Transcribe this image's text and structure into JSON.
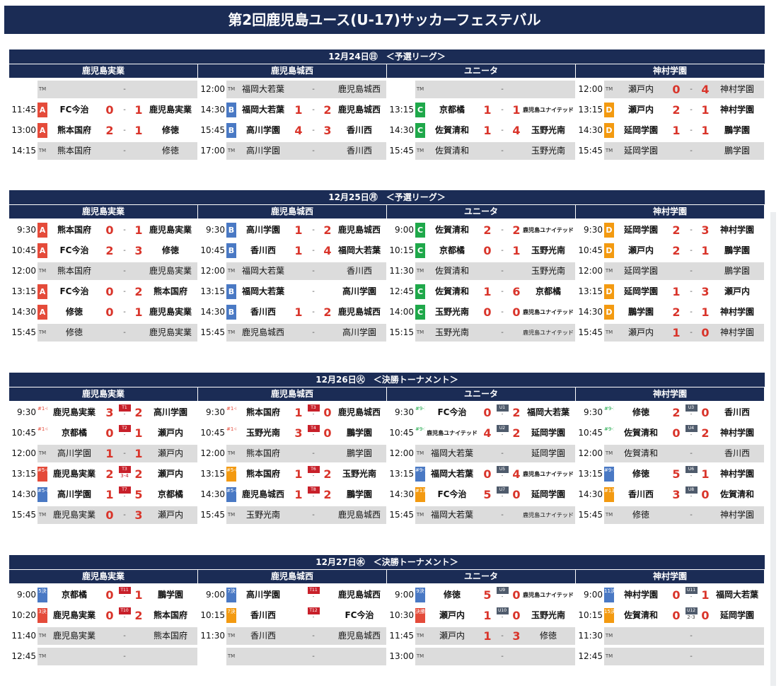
{
  "title": "第2回鹿児島ユース(U-17)サッカーフェステバル",
  "venues": [
    "鹿児島実業",
    "鹿児島城西",
    "ユニータ",
    "神村学園"
  ],
  "days": [
    {
      "label": "12月24日㊐　＜予選リーグ＞",
      "cols": [
        [
          {
            "t": "",
            "g": "TM",
            "h": "",
            "a": "",
            "dash": true,
            "sh": true
          },
          {
            "t": "11:45",
            "g": "A",
            "h": "FC今治",
            "s1": "0",
            "s2": "1",
            "a": "鹿児島実業"
          },
          {
            "t": "13:00",
            "g": "A",
            "h": "熊本国府",
            "s1": "2",
            "s2": "1",
            "a": "修徳"
          },
          {
            "t": "14:15",
            "g": "TM",
            "h": "熊本国府",
            "a": "修徳",
            "dash": true,
            "sh": true
          }
        ],
        [
          {
            "t": "12:00",
            "g": "TM",
            "h": "福岡大若葉",
            "a": "鹿児島城西",
            "dash": true,
            "sh": true
          },
          {
            "t": "14:30",
            "g": "B",
            "h": "福岡大若葉",
            "s1": "1",
            "s2": "2",
            "a": "鹿児島城西"
          },
          {
            "t": "15:45",
            "g": "B",
            "h": "高川学園",
            "s1": "4",
            "s2": "3",
            "a": "香川西"
          },
          {
            "t": "17:00",
            "g": "TM",
            "h": "高川学園",
            "a": "香川西",
            "dash": true,
            "sh": true
          }
        ],
        [
          {
            "t": "",
            "g": "TM",
            "h": "",
            "a": "",
            "dash": true,
            "sh": true
          },
          {
            "t": "13:15",
            "g": "C",
            "h": "京都橘",
            "s1": "1",
            "s2": "1",
            "a": "鹿児島ユナイテッド",
            "as": 1
          },
          {
            "t": "14:30",
            "g": "C",
            "h": "佐賀清和",
            "s1": "1",
            "s2": "4",
            "a": "玉野光南"
          },
          {
            "t": "15:45",
            "g": "TM",
            "h": "佐賀清和",
            "a": "玉野光南",
            "dash": true,
            "sh": true
          }
        ],
        [
          {
            "t": "12:00",
            "g": "TM",
            "h": "瀬戸内",
            "s1": "0",
            "s2": "4",
            "a": "神村学園",
            "sh": true
          },
          {
            "t": "13:15",
            "g": "D",
            "h": "瀬戸内",
            "s1": "2",
            "s2": "1",
            "a": "神村学園"
          },
          {
            "t": "14:30",
            "g": "D",
            "h": "延岡学園",
            "s1": "1",
            "s2": "1",
            "a": "鵬学園"
          },
          {
            "t": "15:45",
            "g": "TM",
            "h": "延岡学園",
            "a": "鵬学園",
            "dash": true,
            "sh": true
          }
        ]
      ]
    },
    {
      "label": "12月25日㊊　＜予選リーグ＞",
      "cols": [
        [
          {
            "t": "9:30",
            "g": "A",
            "h": "熊本国府",
            "s1": "0",
            "s2": "1",
            "a": "鹿児島実業"
          },
          {
            "t": "10:45",
            "g": "A",
            "h": "FC今治",
            "s1": "2",
            "s2": "3",
            "a": "修徳"
          },
          {
            "t": "12:00",
            "g": "TM",
            "h": "熊本国府",
            "a": "鹿児島実業",
            "dash": true,
            "sh": true
          },
          {
            "t": "13:15",
            "g": "A",
            "h": "FC今治",
            "s1": "0",
            "s2": "2",
            "a": "熊本国府"
          },
          {
            "t": "14:30",
            "g": "A",
            "h": "修徳",
            "s1": "0",
            "s2": "1",
            "a": "鹿児島実業"
          },
          {
            "t": "15:45",
            "g": "TM",
            "h": "修徳",
            "a": "鹿児島実業",
            "dash": true,
            "sh": true
          }
        ],
        [
          {
            "t": "9:30",
            "g": "B",
            "h": "高川学園",
            "s1": "1",
            "s2": "2",
            "a": "鹿児島城西"
          },
          {
            "t": "10:45",
            "g": "B",
            "h": "香川西",
            "s1": "1",
            "s2": "4",
            "a": "福岡大若葉"
          },
          {
            "t": "12:00",
            "g": "TM",
            "h": "福岡大若葉",
            "a": "香川西",
            "dash": true,
            "sh": true
          },
          {
            "t": "13:15",
            "g": "B",
            "h": "福岡大若葉",
            "a": "高川学園",
            "dash": true
          },
          {
            "t": "14:30",
            "g": "B",
            "h": "香川西",
            "s1": "1",
            "s2": "2",
            "a": "鹿児島城西"
          },
          {
            "t": "15:45",
            "g": "TM",
            "h": "鹿児島城西",
            "a": "高川学園",
            "dash": true,
            "sh": true
          }
        ],
        [
          {
            "t": "9:00",
            "g": "C",
            "h": "佐賀清和",
            "s1": "2",
            "s2": "2",
            "a": "鹿児島ユナイテッド",
            "as": 1
          },
          {
            "t": "10:15",
            "g": "C",
            "h": "京都橘",
            "s1": "0",
            "s2": "1",
            "a": "玉野光南"
          },
          {
            "t": "11:30",
            "g": "TM",
            "h": "佐賀清和",
            "a": "玉野光南",
            "dash": true,
            "sh": true
          },
          {
            "t": "12:45",
            "g": "C",
            "h": "佐賀清和",
            "s1": "1",
            "s2": "6",
            "a": "京都橘"
          },
          {
            "t": "14:00",
            "g": "C",
            "h": "玉野光南",
            "s1": "0",
            "s2": "0",
            "a": "鹿児島ユナイテッド",
            "as": 1
          },
          {
            "t": "15:15",
            "g": "TM",
            "h": "玉野光南",
            "a": "鹿児島ユナイテッド",
            "as": 1,
            "dash": true,
            "sh": true
          }
        ],
        [
          {
            "t": "9:30",
            "g": "D",
            "h": "延岡学園",
            "s1": "2",
            "s2": "3",
            "a": "神村学園"
          },
          {
            "t": "10:45",
            "g": "D",
            "h": "瀬戸内",
            "s1": "2",
            "s2": "1",
            "a": "鵬学園"
          },
          {
            "t": "12:00",
            "g": "TM",
            "h": "延岡学園",
            "a": "鵬学園",
            "dash": true,
            "sh": true
          },
          {
            "t": "13:15",
            "g": "D",
            "h": "延岡学園",
            "s1": "1",
            "s2": "3",
            "a": "瀬戸内"
          },
          {
            "t": "14:30",
            "g": "D",
            "h": "鵬学園",
            "s1": "2",
            "s2": "1",
            "a": "神村学園"
          },
          {
            "t": "15:45",
            "g": "TM",
            "h": "瀬戸内",
            "s1": "1",
            "s2": "0",
            "a": "神村学園",
            "sh": true
          }
        ]
      ]
    },
    {
      "label": "12月26日㊋　＜決勝トーナメント＞",
      "cols": [
        [
          {
            "t": "9:30",
            "g": "rkA",
            "gl": "#1-8",
            "h": "鹿児島実業",
            "s1": "3",
            "s2": "2",
            "a": "高川学園",
            "mc": "T1",
            "mcl": "tr",
            "pk": "-"
          },
          {
            "t": "10:45",
            "g": "rkA",
            "gl": "#1-8",
            "h": "京都橘",
            "s1": "0",
            "s2": "1",
            "a": "瀬戸内",
            "mc": "T2",
            "mcl": "tr",
            "pk": "-"
          },
          {
            "t": "12:00",
            "g": "TM",
            "h": "高川学園",
            "s1": "1",
            "s2": "1",
            "a": "瀬戸内",
            "sh": true
          },
          {
            "t": "13:15",
            "g": "rkAf",
            "gl": "#5-8",
            "h": "鹿児島実業",
            "s1": "2",
            "s2": "2",
            "a": "瀬戸内",
            "mc": "T3",
            "mcl": "tr",
            "pk": "3-4",
            "pkc": 1
          },
          {
            "t": "14:30",
            "g": "rkCf",
            "gl": "#5-8",
            "h": "高川学園",
            "s1": "1",
            "s2": "5",
            "a": "京都橘",
            "mc": "T7",
            "mcl": "tr",
            "pk": "-"
          },
          {
            "t": "15:45",
            "g": "TM",
            "h": "鹿児島実業",
            "s1": "0",
            "s2": "3",
            "a": "瀬戸内",
            "sh": true
          }
        ],
        [
          {
            "t": "9:30",
            "g": "rkA",
            "gl": "#1-8",
            "h": "熊本国府",
            "s1": "1",
            "s2": "0",
            "a": "鹿児島城西",
            "mc": "T3",
            "mcl": "tr",
            "pk": "-"
          },
          {
            "t": "10:45",
            "g": "rkA",
            "gl": "#1-8",
            "h": "玉野光南",
            "s1": "3",
            "s2": "0",
            "a": "鵬学園",
            "mc": "T4",
            "mcl": "tr",
            "pk": "-"
          },
          {
            "t": "12:00",
            "g": "TM",
            "h": "熊本国府",
            "a": "鵬学園",
            "dash": true,
            "sh": true
          },
          {
            "t": "13:15",
            "g": "rkBf",
            "gl": "#5-8",
            "h": "熊本国府",
            "s1": "1",
            "s2": "2",
            "a": "玉野光南",
            "mc": "T6",
            "mcl": "tr",
            "pk": "-"
          },
          {
            "t": "14:30",
            "g": "rkCf",
            "gl": "#5-8",
            "h": "鹿児島城西",
            "s1": "1",
            "s2": "2",
            "a": "鵬学園",
            "mc": "T8",
            "mcl": "tr",
            "pk": "-"
          },
          {
            "t": "15:45",
            "g": "TM",
            "h": "玉野光南",
            "a": "鹿児島城西",
            "dash": true,
            "sh": true
          }
        ],
        [
          {
            "t": "9:30",
            "g": "rkC",
            "gl": "#9-16",
            "h": "FC今治",
            "s1": "0",
            "s2": "2",
            "a": "福岡大若葉",
            "mc": "U1",
            "mcl": "ug",
            "pk": "-"
          },
          {
            "t": "10:45",
            "g": "rkC",
            "gl": "#9-16",
            "h": "鹿児島ユナイテッド",
            "hs": 1,
            "s1": "4",
            "s2": "2",
            "a": "延岡学園",
            "mc": "U2",
            "mcl": "ug",
            "pk": "-"
          },
          {
            "t": "12:00",
            "g": "TM",
            "h": "福岡大若葉",
            "a": "延岡学園",
            "dash": true,
            "sh": true
          },
          {
            "t": "13:15",
            "g": "rkCf",
            "gl": "#9-12",
            "h": "福岡大若葉",
            "s1": "0",
            "s2": "4",
            "a": "鹿児島ユナイテッド",
            "as": 1,
            "mc": "U5",
            "mcl": "ug",
            "pk": "-"
          },
          {
            "t": "14:30",
            "g": "rkBf",
            "gl": "#13-16",
            "h": "FC今治",
            "s1": "5",
            "s2": "0",
            "a": "延岡学園",
            "mc": "U7",
            "mcl": "ug",
            "pk": "-"
          },
          {
            "t": "15:45",
            "g": "TM",
            "h": "福岡大若葉",
            "a": "鹿児島ユナイテッド",
            "as": 1,
            "dash": true,
            "sh": true
          }
        ],
        [
          {
            "t": "9:30",
            "g": "rkC",
            "gl": "#9-16",
            "h": "修徳",
            "s1": "2",
            "s2": "0",
            "a": "香川西",
            "mc": "U3",
            "mcl": "ug",
            "pk": "-"
          },
          {
            "t": "10:45",
            "g": "rkC",
            "gl": "#9-16",
            "h": "佐賀清和",
            "s1": "0",
            "s2": "2",
            "a": "神村学園",
            "mc": "U4",
            "mcl": "ug",
            "pk": "-"
          },
          {
            "t": "12:00",
            "g": "TM",
            "h": "佐賀清和",
            "a": "香川西",
            "dash": true,
            "sh": true
          },
          {
            "t": "13:15",
            "g": "rkCf",
            "gl": "#9-12",
            "h": "修徳",
            "s1": "5",
            "s2": "1",
            "a": "神村学園",
            "mc": "U6",
            "mcl": "ug",
            "pk": "-"
          },
          {
            "t": "14:30",
            "g": "rkBf",
            "gl": "#13-16",
            "h": "香川西",
            "s1": "3",
            "s2": "0",
            "a": "佐賀清和",
            "mc": "U8",
            "mcl": "ug",
            "pk": "-"
          },
          {
            "t": "15:45",
            "g": "TM",
            "h": "修徳",
            "a": "神村学園",
            "dash": true,
            "sh": true
          }
        ]
      ]
    },
    {
      "label": "12月27日㊌　＜決勝トーナメント＞",
      "cols": [
        [
          {
            "t": "9:00",
            "g": "rkCf",
            "gl": "5決",
            "h": "京都橘",
            "s1": "0",
            "s2": "1",
            "a": "鵬学園",
            "mc": "T11",
            "mcl": "tr",
            "pk": "-"
          },
          {
            "t": "10:20",
            "g": "rkAf",
            "gl": "3決",
            "h": "鹿児島実業",
            "s1": "0",
            "s2": "2",
            "a": "熊本国府",
            "mc": "T10",
            "mcl": "tr",
            "pk": "-"
          },
          {
            "t": "11:40",
            "g": "TM",
            "h": "鹿児島実業",
            "a": "熊本国府",
            "dash": true,
            "sh": true
          },
          {
            "t": "12:45",
            "g": "TM",
            "h": "",
            "a": "",
            "dash": true,
            "sh": true
          }
        ],
        [
          {
            "t": "9:00",
            "g": "rkCf",
            "gl": "7決",
            "h": "高川学園",
            "a": "鹿児島城西",
            "mc": "T11",
            "mcl": "tr",
            "pk": "-"
          },
          {
            "t": "10:15",
            "g": "rkBf",
            "gl": "7決",
            "h": "香川西",
            "a": "FC今治",
            "mc": "T12",
            "mcl": "tr",
            "pk": "-"
          },
          {
            "t": "11:30",
            "g": "TM",
            "h": "香川西",
            "a": "鹿児島城西",
            "dash": true,
            "sh": true
          },
          {
            "t": "",
            "g": "TM",
            "h": "",
            "a": "",
            "dash": true,
            "sh": true
          }
        ],
        [
          {
            "t": "9:00",
            "g": "rkCf",
            "gl": "9決",
            "h": "修徳",
            "s1": "5",
            "s2": "0",
            "a": "鹿児島ユナイテッド",
            "as": 1,
            "mc": "U9",
            "mcl": "ug",
            "pk": "-"
          },
          {
            "t": "10:30",
            "g": "rkAf",
            "gl": "決勝",
            "h": "瀬戸内",
            "s1": "1",
            "s2": "0",
            "a": "玉野光南",
            "mc": "U10",
            "mcl": "ug",
            "pk": "-"
          },
          {
            "t": "11:45",
            "g": "TM",
            "h": "瀬戸内",
            "s1": "1",
            "s2": "3",
            "a": "修徳",
            "sh": true
          },
          {
            "t": "13:00",
            "g": "TM",
            "h": "",
            "a": "",
            "dash": true,
            "sh": true
          }
        ],
        [
          {
            "t": "9:00",
            "g": "rkCf",
            "gl": "11決",
            "h": "神村学園",
            "s1": "0",
            "s2": "1",
            "a": "福岡大若葉",
            "mc": "U11",
            "mcl": "ug",
            "pk": "-"
          },
          {
            "t": "10:15",
            "g": "rkBf",
            "gl": "15決",
            "h": "佐賀清和",
            "s1": "0",
            "s2": "0",
            "a": "延岡学園",
            "mc": "U12",
            "mcl": "ug",
            "pk": "2-3"
          },
          {
            "t": "11:30",
            "g": "TM",
            "h": "",
            "a": "",
            "dash": true,
            "sh": true
          },
          {
            "t": "12:45",
            "g": "TM",
            "h": "",
            "a": "",
            "dash": true,
            "sh": true
          }
        ]
      ]
    }
  ],
  "tm": "TM",
  "dash": "-"
}
